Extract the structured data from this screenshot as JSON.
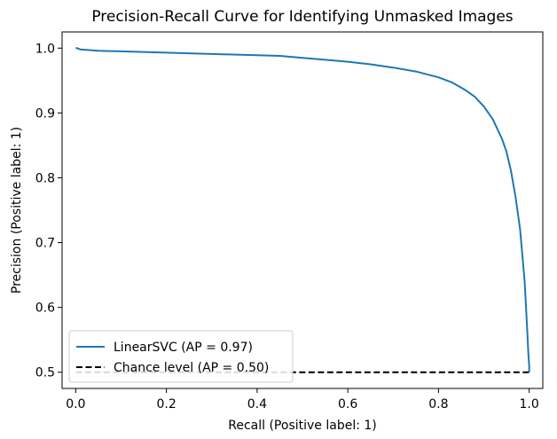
{
  "chart_data": {
    "type": "line",
    "title": "Precision-Recall Curve for Identifying Unmasked Images",
    "xlabel": "Recall (Positive label: 1)",
    "ylabel": "Precision (Positive label: 1)",
    "xlim": [
      -0.03,
      1.03
    ],
    "ylim": [
      0.475,
      1.025
    ],
    "xticks": [
      0.0,
      0.2,
      0.4,
      0.6,
      0.8,
      1.0
    ],
    "xtick_labels": [
      "0.0",
      "0.2",
      "0.4",
      "0.6",
      "0.8",
      "1.0"
    ],
    "yticks": [
      0.5,
      0.6,
      0.7,
      0.8,
      0.9,
      1.0
    ],
    "ytick_labels": [
      "0.5",
      "0.6",
      "0.7",
      "0.8",
      "0.9",
      "1.0"
    ],
    "grid": false,
    "legend_position": "lower-left",
    "series": [
      {
        "name": "LinearSVC (AP = 0.97)",
        "color": "#1f77b4",
        "style": "solid",
        "x": [
          0.0,
          0.003,
          0.01,
          0.03,
          0.05,
          0.1,
          0.2,
          0.3,
          0.4,
          0.45,
          0.5,
          0.55,
          0.6,
          0.65,
          0.7,
          0.75,
          0.8,
          0.83,
          0.86,
          0.88,
          0.9,
          0.92,
          0.94,
          0.95,
          0.96,
          0.97,
          0.98,
          0.985,
          0.99,
          0.993,
          0.996,
          0.998,
          1.0,
          1.0
        ],
        "y": [
          1.0,
          1.0,
          0.998,
          0.997,
          0.996,
          0.995,
          0.993,
          0.991,
          0.989,
          0.988,
          0.985,
          0.982,
          0.979,
          0.975,
          0.97,
          0.964,
          0.955,
          0.947,
          0.935,
          0.925,
          0.91,
          0.89,
          0.86,
          0.84,
          0.81,
          0.77,
          0.72,
          0.68,
          0.64,
          0.6,
          0.56,
          0.53,
          0.51,
          0.5
        ]
      },
      {
        "name": "Chance level (AP = 0.50)",
        "color": "#000000",
        "style": "dashed",
        "x": [
          0.0,
          1.0
        ],
        "y": [
          0.5,
          0.5
        ]
      }
    ]
  }
}
